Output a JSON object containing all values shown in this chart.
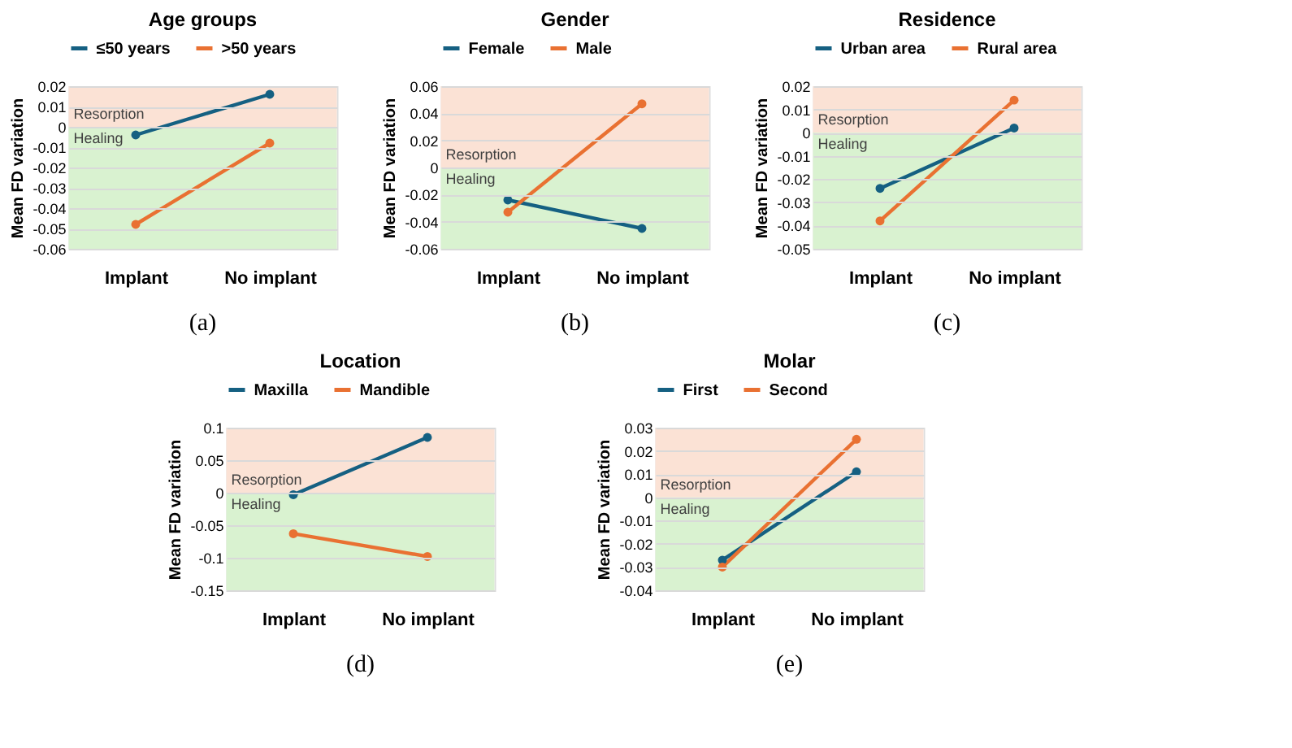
{
  "chart_data": [
    {
      "type": "line",
      "title": "Age groups",
      "ylabel": "Mean FD variation",
      "categories": [
        "Implant",
        "No implant"
      ],
      "series": [
        {
          "name": "≤50 years",
          "color": "#156082",
          "values": [
            -0.004,
            0.016
          ]
        },
        {
          "name": ">50 years",
          "color": "#e97132",
          "values": [
            -0.048,
            -0.008
          ]
        }
      ],
      "ylim": [
        -0.06,
        0.02
      ],
      "yticks": [
        -0.06,
        -0.05,
        -0.04,
        -0.03,
        -0.02,
        -0.01,
        0,
        0.01,
        0.02
      ],
      "bands": [
        {
          "axis": "y",
          "from": 0,
          "to": 0.02,
          "label": "Resorption",
          "color": "#fbe2d5"
        },
        {
          "axis": "y",
          "from": -0.06,
          "to": 0,
          "label": "Healing",
          "color": "#d9f2d0"
        }
      ],
      "grid": "y",
      "legend": "top",
      "marker": "circle",
      "line_style": "solid",
      "annotations": [
        "(a)"
      ]
    },
    {
      "type": "line",
      "title": "Gender",
      "ylabel": "Mean FD variation",
      "categories": [
        "Implant",
        "No implant"
      ],
      "series": [
        {
          "name": "Female",
          "color": "#156082",
          "values": [
            -0.024,
            -0.045
          ]
        },
        {
          "name": "Male",
          "color": "#e97132",
          "values": [
            -0.033,
            0.047
          ]
        }
      ],
      "ylim": [
        -0.06,
        0.06
      ],
      "yticks": [
        -0.06,
        -0.04,
        -0.02,
        0,
        0.02,
        0.04,
        0.06
      ],
      "bands": [
        {
          "axis": "y",
          "from": 0,
          "to": 0.06,
          "label": "Resorption",
          "color": "#fbe2d5"
        },
        {
          "axis": "y",
          "from": -0.06,
          "to": 0,
          "label": "Healing",
          "color": "#d9f2d0"
        }
      ],
      "grid": "y",
      "legend": "top",
      "marker": "circle",
      "line_style": "solid",
      "annotations": [
        "(b)"
      ]
    },
    {
      "type": "line",
      "title": "Residence",
      "ylabel": "Mean FD variation",
      "categories": [
        "Implant",
        "No implant"
      ],
      "series": [
        {
          "name": "Urban area",
          "color": "#156082",
          "values": [
            -0.024,
            0.002
          ]
        },
        {
          "name": "Rural area",
          "color": "#e97132",
          "values": [
            -0.038,
            0.014
          ]
        }
      ],
      "ylim": [
        -0.05,
        0.02
      ],
      "yticks": [
        -0.05,
        -0.04,
        -0.03,
        -0.02,
        -0.01,
        0,
        0.01,
        0.02
      ],
      "bands": [
        {
          "axis": "y",
          "from": 0,
          "to": 0.02,
          "label": "Resorption",
          "color": "#fbe2d5"
        },
        {
          "axis": "y",
          "from": -0.05,
          "to": 0,
          "label": "Healing",
          "color": "#d9f2d0"
        }
      ],
      "grid": "y",
      "legend": "top",
      "marker": "circle",
      "line_style": "solid",
      "annotations": [
        "(c)"
      ]
    },
    {
      "type": "line",
      "title": "Location",
      "ylabel": "Mean FD variation",
      "categories": [
        "Implant",
        "No implant"
      ],
      "series": [
        {
          "name": "Maxilla",
          "color": "#156082",
          "values": [
            -0.003,
            0.085
          ]
        },
        {
          "name": "Mandible",
          "color": "#e97132",
          "values": [
            -0.063,
            -0.098
          ]
        }
      ],
      "ylim": [
        -0.15,
        0.1
      ],
      "yticks": [
        -0.15,
        -0.1,
        -0.05,
        0,
        0.05,
        0.1
      ],
      "bands": [
        {
          "axis": "y",
          "from": 0,
          "to": 0.1,
          "label": "Resorption",
          "color": "#fbe2d5"
        },
        {
          "axis": "y",
          "from": -0.15,
          "to": 0,
          "label": "Healing",
          "color": "#d9f2d0"
        }
      ],
      "grid": "y",
      "legend": "top",
      "marker": "circle",
      "line_style": "solid",
      "annotations": [
        "(d)"
      ]
    },
    {
      "type": "line",
      "title": "Molar",
      "ylabel": "Mean FD variation",
      "categories": [
        "Implant",
        "No implant"
      ],
      "series": [
        {
          "name": "First",
          "color": "#156082",
          "values": [
            -0.027,
            0.011
          ]
        },
        {
          "name": "Second",
          "color": "#e97132",
          "values": [
            -0.03,
            0.025
          ]
        }
      ],
      "ylim": [
        -0.04,
        0.03
      ],
      "yticks": [
        -0.04,
        -0.03,
        -0.02,
        -0.01,
        0,
        0.01,
        0.02,
        0.03
      ],
      "bands": [
        {
          "axis": "y",
          "from": 0,
          "to": 0.03,
          "label": "Resorption",
          "color": "#fbe2d5"
        },
        {
          "axis": "y",
          "from": -0.04,
          "to": 0,
          "label": "Healing",
          "color": "#d9f2d0"
        }
      ],
      "grid": "y",
      "legend": "top",
      "marker": "circle",
      "line_style": "solid",
      "annotations": [
        "(e)"
      ]
    }
  ]
}
